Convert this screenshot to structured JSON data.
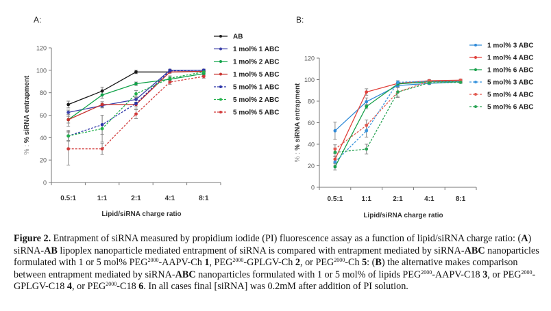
{
  "chart_data": [
    {
      "panel": "A:",
      "type": "line",
      "title": "",
      "xlabel": "Lipid/siRNA charge ratio",
      "ylabel": "% siRNA entrapment",
      "ylabel_prefix": "% :",
      "categories": [
        "0.5:1",
        "1:1",
        "2:1",
        "4:1",
        "8:1"
      ],
      "ylim": [
        0,
        120
      ],
      "yticks": [
        0,
        20,
        40,
        60,
        80,
        100,
        120
      ],
      "grid": false,
      "legend_position": "right",
      "series": [
        {
          "name": "AB",
          "color": "#1a1a1a",
          "dashed": false,
          "values": [
            69.5,
            81.5,
            98.5,
            98.5,
            99
          ],
          "errors": [
            3,
            3.5,
            1.5,
            1,
            1
          ]
        },
        {
          "name": "1 mol% 1 ABC",
          "color": "#3a3fa8",
          "dashed": false,
          "values": [
            62.5,
            68.5,
            74,
            100,
            100
          ],
          "errors": [
            2,
            2,
            3,
            1,
            1
          ]
        },
        {
          "name": "1 mol% 2 ABC",
          "color": "#12a34a",
          "dashed": false,
          "values": [
            56,
            78,
            88,
            92,
            97
          ],
          "errors": [
            3,
            3,
            1.5,
            2,
            1.5
          ]
        },
        {
          "name": "1 mol% 5 ABC",
          "color": "#c8322f",
          "dashed": false,
          "values": [
            56,
            69.5,
            69.5,
            98.5,
            99
          ],
          "errors": [
            6,
            2.5,
            2,
            1,
            1
          ]
        },
        {
          "name": "5 mol% 1 ABC",
          "color": "#2b33a8",
          "dashed": true,
          "values": [
            41.5,
            51.5,
            70.5,
            99.5,
            100
          ],
          "errors": [
            5,
            8.5,
            5,
            1,
            1
          ]
        },
        {
          "name": "5 mol% 2 ABC",
          "color": "#22b04b",
          "dashed": true,
          "values": [
            41.5,
            48,
            79,
            93,
            98.5
          ],
          "errors": [
            4,
            12,
            3,
            2,
            1.5
          ]
        },
        {
          "name": "5 mol% 5 ABC",
          "color": "#d23b3b",
          "dashed": true,
          "values": [
            30,
            30,
            61,
            89.5,
            94.5
          ],
          "errors": [
            14.5,
            5,
            4,
            2,
            1.5
          ]
        }
      ]
    },
    {
      "panel": "B:",
      "type": "line",
      "title": "",
      "xlabel": "Lipid/siRNA charge ratio",
      "ylabel": "% siRNA entrapment",
      "ylabel_prefix": "% :",
      "categories": [
        "0.5:1",
        "1:1",
        "2:1",
        "4:1",
        "8:1"
      ],
      "ylim": [
        0,
        120
      ],
      "yticks": [
        0,
        20,
        40,
        60,
        80,
        100,
        120
      ],
      "grid": false,
      "legend_position": "right",
      "series": [
        {
          "name": "1 mol% 3 ABC",
          "color": "#2f8ad8",
          "dashed": false,
          "values": [
            52.5,
            79.5,
            94.5,
            96.5,
            98
          ],
          "errors": [
            8,
            3.5,
            2,
            1,
            1
          ]
        },
        {
          "name": "1 mol% 4 ABC",
          "color": "#e0403a",
          "dashed": false,
          "values": [
            26,
            88.5,
            96.5,
            99,
            99.5
          ],
          "errors": [
            3,
            3,
            1,
            1,
            1
          ]
        },
        {
          "name": "1 mol% 6 ABC",
          "color": "#17a04a",
          "dashed": false,
          "values": [
            19,
            75,
            96,
            98,
            98
          ],
          "errors": [
            3,
            2,
            1.5,
            1,
            1
          ]
        },
        {
          "name": "5 mol% 3 ABC",
          "color": "#3a95dd",
          "dashed": true,
          "values": [
            23.5,
            52.5,
            97.5,
            98.5,
            98.5
          ],
          "errors": [
            3,
            6,
            1.5,
            1,
            1
          ]
        },
        {
          "name": "5 mol% 4 ABC",
          "color": "#e25a50",
          "dashed": true,
          "values": [
            35.5,
            57.5,
            88.5,
            98.5,
            99
          ],
          "errors": [
            4,
            5,
            4,
            1,
            1
          ]
        },
        {
          "name": "5 mol% 6 ABC",
          "color": "#2aa355",
          "dashed": true,
          "values": [
            32.5,
            35.5,
            88.5,
            97,
            97.5
          ],
          "errors": [
            4,
            4.5,
            5,
            1.5,
            1
          ]
        }
      ]
    }
  ],
  "caption": {
    "figure_label": "Figure 2.",
    "segments": [
      {
        "t": " Entrapment of siRNA measured by propidium iodide (PI) fluorescence assay as a function of lipid/siRNA charge ratio: ("
      },
      {
        "t": "A",
        "b": true
      },
      {
        "t": ") siRNA-"
      },
      {
        "t": "AB",
        "b": true
      },
      {
        "t": " lipoplex nanoparticle mediated entrapment of siRNA is compared with entrapment mediated by siRNA-"
      },
      {
        "t": "ABC",
        "b": true
      },
      {
        "t": " nanoparticles formulated with 1 or 5 mol% PEG"
      },
      {
        "t": "2000",
        "sup": true
      },
      {
        "t": "-AAPV-Ch "
      },
      {
        "t": "1",
        "b": true
      },
      {
        "t": ", PEG"
      },
      {
        "t": "2000",
        "sup": true
      },
      {
        "t": "-GPLGV-Ch "
      },
      {
        "t": "2",
        "b": true
      },
      {
        "t": ", or PEG"
      },
      {
        "t": "2000",
        "sup": true
      },
      {
        "t": "-Ch "
      },
      {
        "t": "5",
        "b": true
      },
      {
        "t": ": ("
      },
      {
        "t": "B",
        "b": true
      },
      {
        "t": ") the alternative makes comparison between entrapment mediated by siRNA-"
      },
      {
        "t": "ABC",
        "b": true
      },
      {
        "t": " nanoparticles formulated with 1 or 5 mol% of lipids PEG"
      },
      {
        "t": "2000",
        "sup": true
      },
      {
        "t": "-AAPV-C18 "
      },
      {
        "t": "3",
        "b": true
      },
      {
        "t": ", or PEG"
      },
      {
        "t": "2000",
        "sup": true
      },
      {
        "t": "-GPLGV-C18 "
      },
      {
        "t": "4",
        "b": true
      },
      {
        "t": ", or PEG"
      },
      {
        "t": "2000",
        "sup": true
      },
      {
        "t": "-C18 "
      },
      {
        "t": "6",
        "b": true
      },
      {
        "t": ". In all cases final [siRNA] was 0.2mM after addition of PI solution."
      }
    ]
  }
}
